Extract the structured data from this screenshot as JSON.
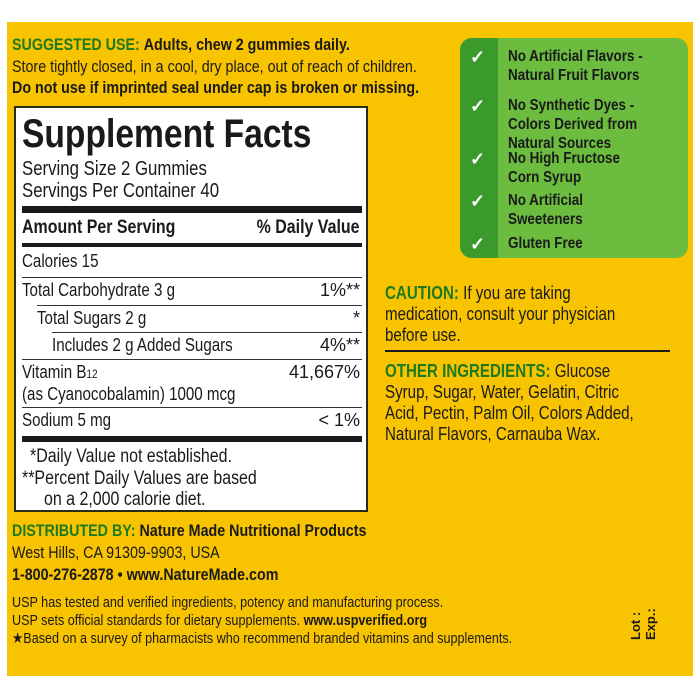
{
  "suggested_use": {
    "heading": "SUGGESTED USE:",
    "text": "Adults, chew 2 gummies daily.",
    "storage": "Store tightly closed, in a cool, dry place, out of reach of children.",
    "seal_warning": "Do not use if imprinted seal under cap is broken or missing."
  },
  "facts": {
    "title": "Supplement Facts",
    "serving_size": "Serving Size 2 Gummies",
    "servings_per_container": "Servings Per Container 40",
    "header_amount": "Amount Per Serving",
    "header_dv": "% Daily Value",
    "rows": [
      {
        "label": "Calories  15",
        "dv": ""
      },
      {
        "label": "Total Carbohydrate  3 g",
        "dv": "1%**"
      },
      {
        "label": "Total Sugars  2 g",
        "dv": "*"
      },
      {
        "label": "Includes 2 g Added Sugars",
        "dv": "4%**"
      },
      {
        "label": "Vitamin B",
        "sub": "12",
        "label2": "(as Cyanocobalamin)  1000 mcg",
        "dv": "41,667%"
      },
      {
        "label": "Sodium  5 mg",
        "dv": "< 1%"
      }
    ],
    "footnote1": "*Daily Value not established.",
    "footnote2": "**Percent Daily Values are based",
    "footnote3": "on a 2,000 calorie diet."
  },
  "claims": {
    "colors": {
      "dark": "#3b9a2c",
      "light": "#6cbd3f"
    },
    "icon": "checkmark-icon",
    "items": [
      {
        "line1": "No Artificial Flavors -",
        "line2": "Natural Fruit Flavors"
      },
      {
        "line1": "No Synthetic Dyes -",
        "line2": "Colors Derived from",
        "line3": "Natural Sources"
      },
      {
        "line1": "No High Fructose",
        "line2": "Corn Syrup"
      },
      {
        "line1": "No Artificial",
        "line2": "Sweeteners"
      },
      {
        "line1": "Gluten Free"
      }
    ],
    "check": "✓"
  },
  "caution": {
    "heading": "CAUTION:",
    "line1": "If you are taking",
    "line2": "medication, consult your physician",
    "line3": "before use."
  },
  "ingredients": {
    "heading": "OTHER INGREDIENTS:",
    "line1": "Glucose",
    "line2": "Syrup, Sugar, Water, Gelatin, Citric",
    "line3": "Acid, Pectin, Palm Oil, Colors Added,",
    "line4": "Natural Flavors, Carnauba Wax."
  },
  "distributor": {
    "heading": "DISTRIBUTED BY:",
    "name": "Nature Made Nutritional Products",
    "address": "West Hills, CA 91309-9903, USA",
    "phone": "1-800-276-2878",
    "bullet": "•",
    "website": "www.NatureMade.com"
  },
  "usp": {
    "line1": "USP has tested and verified ingredients, potency and manufacturing process.",
    "line2": "USP sets official standards for dietary supplements.",
    "link": "www.uspverified.org",
    "star": "★",
    "line3": "Based on a survey of pharmacists who recommend branded vitamins and supplements."
  },
  "lot_label": "Lot :",
  "exp_label": "Exp.:",
  "colors": {
    "panel": "#f8c300",
    "heading_green": "#1f7a1f"
  }
}
